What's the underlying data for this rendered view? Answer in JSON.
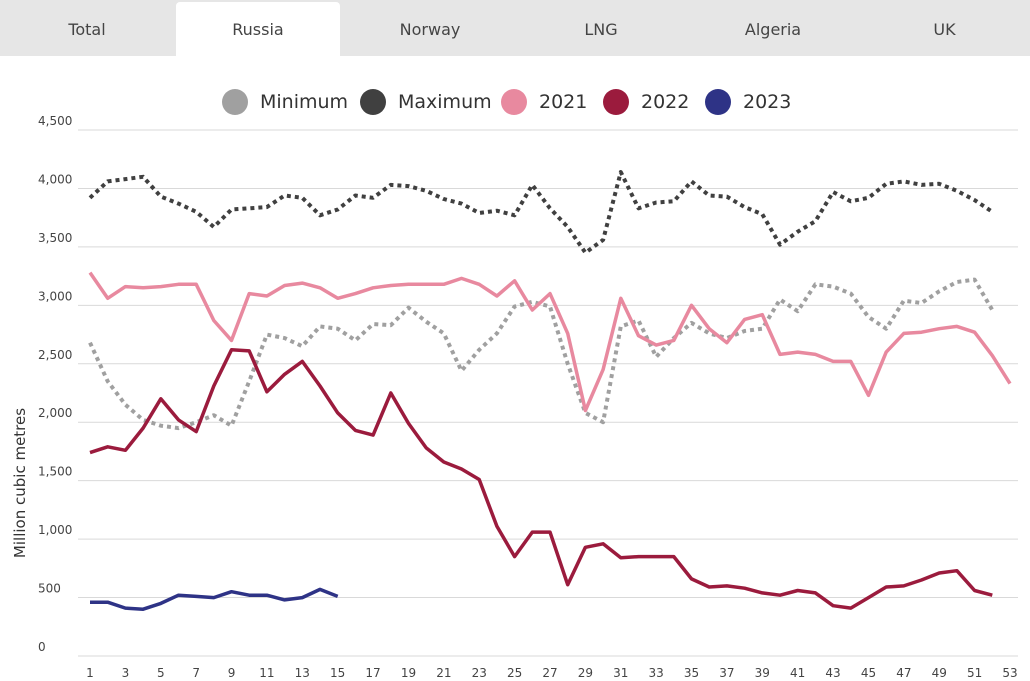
{
  "tabs": [
    {
      "label": "Total",
      "active": false
    },
    {
      "label": "Russia",
      "active": true
    },
    {
      "label": "Norway",
      "active": false
    },
    {
      "label": "LNG",
      "active": false
    },
    {
      "label": "Algeria",
      "active": false
    },
    {
      "label": "UK",
      "active": false
    }
  ],
  "chart_data": {
    "type": "line",
    "ylabel": "Million cubic metres",
    "ylim": [
      0,
      4500
    ],
    "y_ticks": [
      "0",
      "500",
      "1,000",
      "1,500",
      "2,000",
      "2,500",
      "3,000",
      "3,500",
      "4,000",
      "4,500"
    ],
    "x_ticks": [
      "1",
      "3",
      "5",
      "7",
      "9",
      "11",
      "13",
      "15",
      "17",
      "19",
      "21",
      "23",
      "25",
      "27",
      "29",
      "31",
      "33",
      "35",
      "37",
      "39",
      "41",
      "43",
      "45",
      "47",
      "49",
      "51",
      "53"
    ],
    "grid": true,
    "legend_position": "top",
    "series": [
      {
        "name": "Minimum",
        "color": "#a0a0a0",
        "style": "dotted",
        "x": [
          1,
          2,
          3,
          4,
          5,
          6,
          7,
          8,
          9,
          10,
          11,
          12,
          13,
          14,
          15,
          16,
          17,
          18,
          19,
          20,
          21,
          22,
          23,
          24,
          25,
          26,
          27,
          28,
          29,
          30,
          31,
          32,
          33,
          34,
          35,
          36,
          37,
          38,
          39,
          40,
          41,
          42,
          43,
          44,
          45,
          46,
          47,
          48,
          49,
          50,
          51,
          52
        ],
        "values": [
          2680,
          2350,
          2150,
          2020,
          1970,
          1950,
          2000,
          2060,
          1970,
          2350,
          2750,
          2720,
          2650,
          2820,
          2800,
          2700,
          2840,
          2830,
          2980,
          2860,
          2760,
          2440,
          2620,
          2760,
          2990,
          3030,
          2990,
          2500,
          2080,
          2000,
          2820,
          2870,
          2560,
          2720,
          2850,
          2760,
          2720,
          2780,
          2800,
          3050,
          2950,
          3180,
          3160,
          3100,
          2900,
          2800,
          3040,
          3020,
          3120,
          3200,
          3220,
          2960
        ]
      },
      {
        "name": "Maximum",
        "color": "#404040",
        "style": "dotted",
        "x": [
          1,
          2,
          3,
          4,
          5,
          6,
          7,
          8,
          9,
          10,
          11,
          12,
          13,
          14,
          15,
          16,
          17,
          18,
          19,
          20,
          21,
          22,
          23,
          24,
          25,
          26,
          27,
          28,
          29,
          30,
          31,
          32,
          33,
          34,
          35,
          36,
          37,
          38,
          39,
          40,
          41,
          42,
          43,
          44,
          45,
          46,
          47,
          48,
          49,
          50,
          51,
          52
        ],
        "values": [
          3920,
          4060,
          4080,
          4100,
          3930,
          3870,
          3800,
          3670,
          3820,
          3830,
          3840,
          3940,
          3920,
          3770,
          3820,
          3940,
          3920,
          4030,
          4020,
          3980,
          3910,
          3870,
          3790,
          3810,
          3770,
          4030,
          3830,
          3670,
          3450,
          3560,
          4140,
          3830,
          3880,
          3890,
          4060,
          3940,
          3930,
          3840,
          3780,
          3520,
          3630,
          3720,
          3970,
          3890,
          3920,
          4040,
          4060,
          4030,
          4040,
          3980,
          3900,
          3800
        ]
      },
      {
        "name": "2021",
        "color": "#e8899f",
        "style": "solid",
        "x": [
          1,
          2,
          3,
          4,
          5,
          6,
          7,
          8,
          9,
          10,
          11,
          12,
          13,
          14,
          15,
          16,
          17,
          18,
          19,
          20,
          21,
          22,
          23,
          24,
          25,
          26,
          27,
          28,
          29,
          30,
          31,
          32,
          33,
          34,
          35,
          36,
          37,
          38,
          39,
          40,
          41,
          42,
          43,
          44,
          45,
          46,
          47,
          48,
          49,
          50,
          51,
          52,
          53
        ],
        "values": [
          3280,
          3060,
          3160,
          3150,
          3160,
          3180,
          3180,
          2870,
          2700,
          3100,
          3080,
          3170,
          3190,
          3150,
          3060,
          3100,
          3150,
          3170,
          3180,
          3180,
          3180,
          3230,
          3180,
          3080,
          3210,
          2960,
          3100,
          2760,
          2100,
          2450,
          3060,
          2740,
          2660,
          2700,
          3000,
          2800,
          2680,
          2880,
          2920,
          2580,
          2600,
          2580,
          2520,
          2520,
          2230,
          2600,
          2760,
          2770,
          2800,
          2820,
          2770,
          2570,
          2330
        ]
      },
      {
        "name": "2022",
        "color": "#9b1b3d",
        "style": "solid",
        "x": [
          1,
          2,
          3,
          4,
          5,
          6,
          7,
          8,
          9,
          10,
          11,
          12,
          13,
          14,
          15,
          16,
          17,
          18,
          19,
          20,
          21,
          22,
          23,
          24,
          25,
          26,
          27,
          28,
          29,
          30,
          31,
          32,
          33,
          34,
          35,
          36,
          37,
          38,
          39,
          40,
          41,
          42,
          43,
          44,
          45,
          46,
          47,
          48,
          49,
          50,
          51,
          52
        ],
        "values": [
          1740,
          1790,
          1760,
          1950,
          2200,
          2020,
          1920,
          2310,
          2620,
          2610,
          2260,
          2410,
          2520,
          2310,
          2080,
          1930,
          1890,
          2250,
          1990,
          1780,
          1660,
          1600,
          1510,
          1110,
          850,
          1060,
          1060,
          610,
          930,
          960,
          840,
          850,
          850,
          850,
          660,
          590,
          600,
          580,
          540,
          520,
          560,
          540,
          430,
          410,
          500,
          590,
          600,
          650,
          710,
          730,
          560,
          520
        ]
      },
      {
        "name": "2023",
        "color": "#2e3386",
        "style": "solid",
        "x": [
          1,
          2,
          3,
          4,
          5,
          6,
          7,
          8,
          9,
          10,
          11,
          12,
          13,
          14,
          15
        ],
        "values": [
          460,
          460,
          410,
          400,
          450,
          520,
          510,
          500,
          550,
          520,
          520,
          480,
          500,
          570,
          510
        ]
      }
    ]
  }
}
